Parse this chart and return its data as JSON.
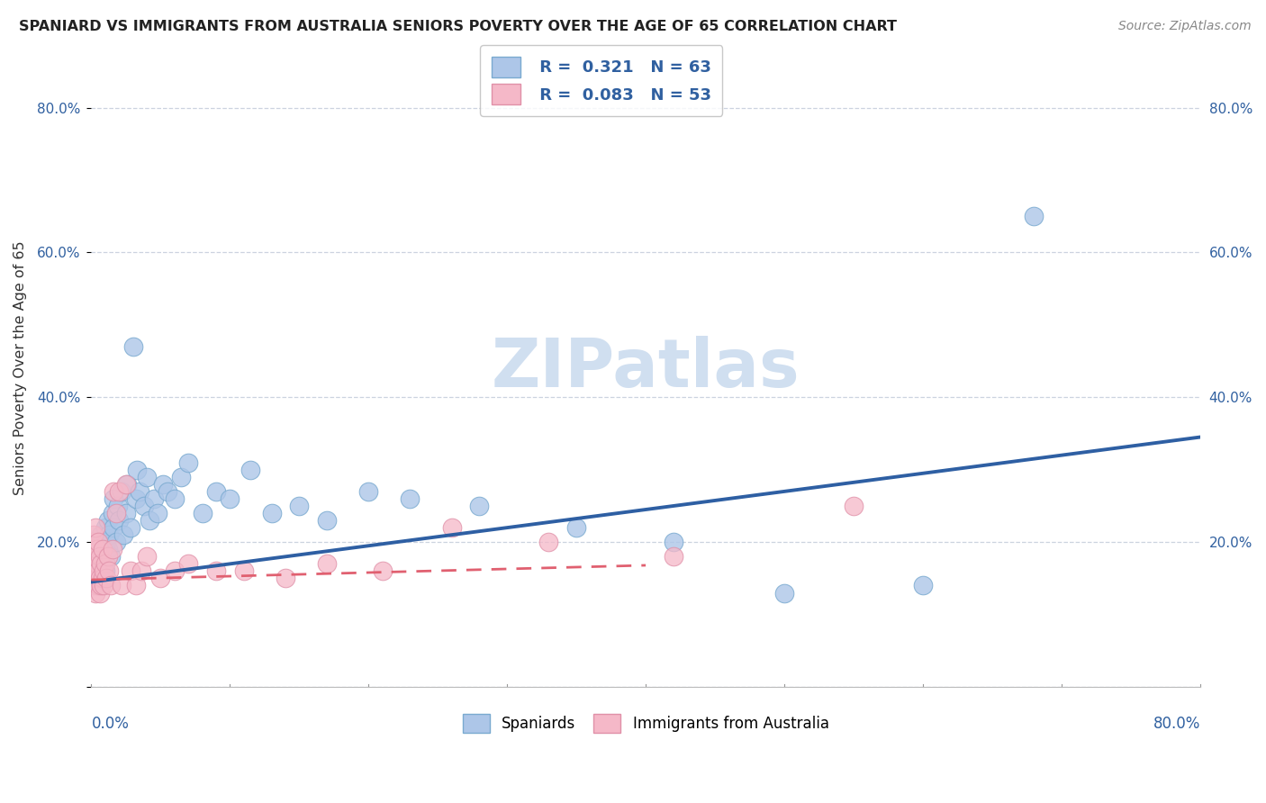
{
  "title": "SPANIARD VS IMMIGRANTS FROM AUSTRALIA SENIORS POVERTY OVER THE AGE OF 65 CORRELATION CHART",
  "source": "Source: ZipAtlas.com",
  "ylabel": "Seniors Poverty Over the Age of 65",
  "legend_label1": "Spaniards",
  "legend_label2": "Immigrants from Australia",
  "R1": "0.321",
  "N1": "63",
  "R2": "0.083",
  "N2": "53",
  "blue_scatter_color": "#adc6e8",
  "blue_edge_color": "#7aaad0",
  "pink_scatter_color": "#f5b8c8",
  "pink_edge_color": "#e090a8",
  "blue_line_color": "#2e5fa3",
  "pink_line_color": "#e06070",
  "watermark_color": "#d0dff0",
  "xlim": [
    0.0,
    0.8
  ],
  "ylim": [
    0.0,
    0.88
  ],
  "yticks": [
    0.0,
    0.2,
    0.4,
    0.6,
    0.8
  ],
  "ytick_labels": [
    "",
    "20.0%",
    "40.0%",
    "60.0%",
    "80.0%"
  ],
  "blue_line_x0": 0.0,
  "blue_line_y0": 0.145,
  "blue_line_x1": 0.8,
  "blue_line_y1": 0.345,
  "pink_line_x0": 0.0,
  "pink_line_y0": 0.148,
  "pink_line_x1": 0.4,
  "pink_line_y1": 0.168,
  "spaniards_x": [
    0.001,
    0.002,
    0.002,
    0.003,
    0.003,
    0.004,
    0.004,
    0.005,
    0.005,
    0.006,
    0.006,
    0.007,
    0.007,
    0.008,
    0.008,
    0.009,
    0.01,
    0.01,
    0.011,
    0.012,
    0.012,
    0.013,
    0.014,
    0.015,
    0.016,
    0.016,
    0.018,
    0.019,
    0.02,
    0.022,
    0.023,
    0.025,
    0.026,
    0.028,
    0.03,
    0.032,
    0.033,
    0.035,
    0.038,
    0.04,
    0.042,
    0.045,
    0.048,
    0.052,
    0.055,
    0.06,
    0.065,
    0.07,
    0.08,
    0.09,
    0.1,
    0.115,
    0.13,
    0.15,
    0.17,
    0.2,
    0.23,
    0.28,
    0.35,
    0.42,
    0.5,
    0.6,
    0.68
  ],
  "spaniards_y": [
    0.14,
    0.17,
    0.16,
    0.15,
    0.18,
    0.14,
    0.19,
    0.16,
    0.17,
    0.2,
    0.15,
    0.18,
    0.21,
    0.16,
    0.19,
    0.17,
    0.22,
    0.16,
    0.2,
    0.19,
    0.23,
    0.21,
    0.18,
    0.24,
    0.22,
    0.26,
    0.2,
    0.25,
    0.23,
    0.27,
    0.21,
    0.24,
    0.28,
    0.22,
    0.47,
    0.26,
    0.3,
    0.27,
    0.25,
    0.29,
    0.23,
    0.26,
    0.24,
    0.28,
    0.27,
    0.26,
    0.29,
    0.31,
    0.24,
    0.27,
    0.26,
    0.3,
    0.24,
    0.25,
    0.23,
    0.27,
    0.26,
    0.25,
    0.22,
    0.2,
    0.13,
    0.14,
    0.65
  ],
  "immigrants_x": [
    0.001,
    0.001,
    0.001,
    0.002,
    0.002,
    0.002,
    0.002,
    0.003,
    0.003,
    0.003,
    0.003,
    0.004,
    0.004,
    0.004,
    0.005,
    0.005,
    0.005,
    0.006,
    0.006,
    0.006,
    0.007,
    0.007,
    0.008,
    0.008,
    0.009,
    0.009,
    0.01,
    0.011,
    0.012,
    0.013,
    0.014,
    0.015,
    0.016,
    0.018,
    0.02,
    0.022,
    0.025,
    0.028,
    0.032,
    0.036,
    0.04,
    0.05,
    0.06,
    0.07,
    0.09,
    0.11,
    0.14,
    0.17,
    0.21,
    0.26,
    0.33,
    0.42,
    0.55
  ],
  "immigrants_y": [
    0.16,
    0.18,
    0.2,
    0.14,
    0.17,
    0.19,
    0.21,
    0.13,
    0.16,
    0.18,
    0.22,
    0.15,
    0.17,
    0.19,
    0.14,
    0.16,
    0.2,
    0.13,
    0.15,
    0.18,
    0.14,
    0.17,
    0.15,
    0.19,
    0.14,
    0.16,
    0.17,
    0.15,
    0.18,
    0.16,
    0.14,
    0.19,
    0.27,
    0.24,
    0.27,
    0.14,
    0.28,
    0.16,
    0.14,
    0.16,
    0.18,
    0.15,
    0.16,
    0.17,
    0.16,
    0.16,
    0.15,
    0.17,
    0.16,
    0.22,
    0.2,
    0.18,
    0.25
  ]
}
